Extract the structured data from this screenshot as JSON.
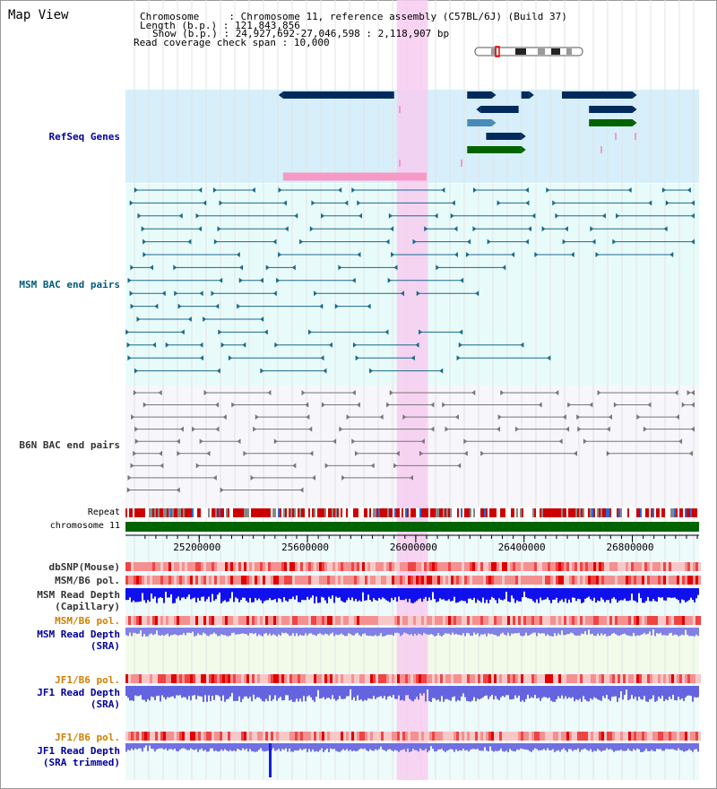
{
  "title": "Map View",
  "info": {
    "chromosome_label": "Chromosome",
    "chromosome_value": "Chromosome 11, reference assembly (C57BL/6J) (Build 37)",
    "length_label": "Length (b.p.)",
    "length_value": "121,843,856",
    "show_label": "Show (b.p.)",
    "show_value": "24,927,692-27,046,598 : 2,118,907 bp",
    "coverage_label": "Read coverage check span",
    "coverage_value": "10,000"
  },
  "tracks": {
    "refseq": "RefSeq Genes",
    "msm_bac": "MSM BAC end pairs",
    "b6n_bac": "B6N BAC end pairs",
    "repeat": "Repeat",
    "chromosome": "chromosome 11",
    "dbsnp": "dbSNP(Mouse)",
    "msm_b6_pol_1": "MSM/B6 pol.",
    "msm_read_depth_cap_1": "MSM Read Depth",
    "msm_read_depth_cap_2": "(Capillary)",
    "msm_b6_pol_2": "MSM/B6 pol.",
    "msm_read_depth_sra_1": "MSM Read Depth",
    "msm_read_depth_sra_2": "(SRA)",
    "jf1_b6_pol_1": "JF1/B6 pol.",
    "jf1_read_depth_sra_1": "JF1 Read Depth",
    "jf1_read_depth_sra_2": "(SRA)",
    "jf1_b6_pol_2": "JF1/B6 pol.",
    "jf1_read_depth_trim_1": "JF1 Read Depth",
    "jf1_read_depth_trim_2": "(SRA trimmed)"
  },
  "colors": {
    "refseq_bg": "#d6effa",
    "msm_bac_bg": "#e8fbfb",
    "b6n_bg": "#f6f6fb",
    "highlight": "#f7ccf0",
    "gene_navy": "#002a5c",
    "gene_steel": "#4a8ab8",
    "gene_green": "#006400",
    "gene_pink": "#f59ac6",
    "msm_bac": "#1a6a8a",
    "b6n_bac": "#777777",
    "chromosome": "#006400",
    "depth_blue": "#0000ee",
    "depth_light": "#8888ee",
    "label_blue": "#00009c",
    "label_teal": "#005c7a",
    "label_orange": "#d08000",
    "label_gray": "#333333"
  },
  "chart_data": {
    "type": "genome_browser",
    "xlim": [
      24927692,
      27046598
    ],
    "x_ticks": [
      {
        "value": 25200000,
        "label": "25200000"
      },
      {
        "value": 25600000,
        "label": "25600000"
      },
      {
        "value": 26000000,
        "label": "26000000"
      },
      {
        "value": 26400000,
        "label": "26400000"
      },
      {
        "value": 26800000,
        "label": "26800000"
      }
    ],
    "highlight_region": [
      25930000,
      26045000
    ],
    "refseq_genes": [
      {
        "start": 25510000,
        "end": 25920000,
        "row": 0,
        "color": "navy",
        "strand": "-"
      },
      {
        "start": 26190000,
        "end": 26280000,
        "row": 0,
        "color": "navy",
        "strand": "+"
      },
      {
        "start": 26390000,
        "end": 26420000,
        "row": 0,
        "color": "navy",
        "strand": "+"
      },
      {
        "start": 26540000,
        "end": 26800000,
        "row": 0,
        "color": "navy",
        "strand": "+"
      },
      {
        "start": 26240000,
        "end": 26380000,
        "row": 1,
        "color": "navy",
        "strand": "-"
      },
      {
        "start": 26640000,
        "end": 26800000,
        "row": 1,
        "color": "navy",
        "strand": "+"
      },
      {
        "start": 26190000,
        "end": 26280000,
        "row": 2,
        "color": "steel",
        "strand": "+"
      },
      {
        "start": 26640000,
        "end": 26800000,
        "row": 2,
        "color": "green",
        "strand": "+"
      },
      {
        "start": 26260000,
        "end": 26390000,
        "row": 3,
        "color": "navy",
        "strand": "+"
      },
      {
        "start": 26190000,
        "end": 26390000,
        "row": 4,
        "color": "green",
        "strand": "+"
      },
      {
        "start": 25510000,
        "end": 26040000,
        "row": 5,
        "color": "pink",
        "strand": ""
      }
    ]
  }
}
